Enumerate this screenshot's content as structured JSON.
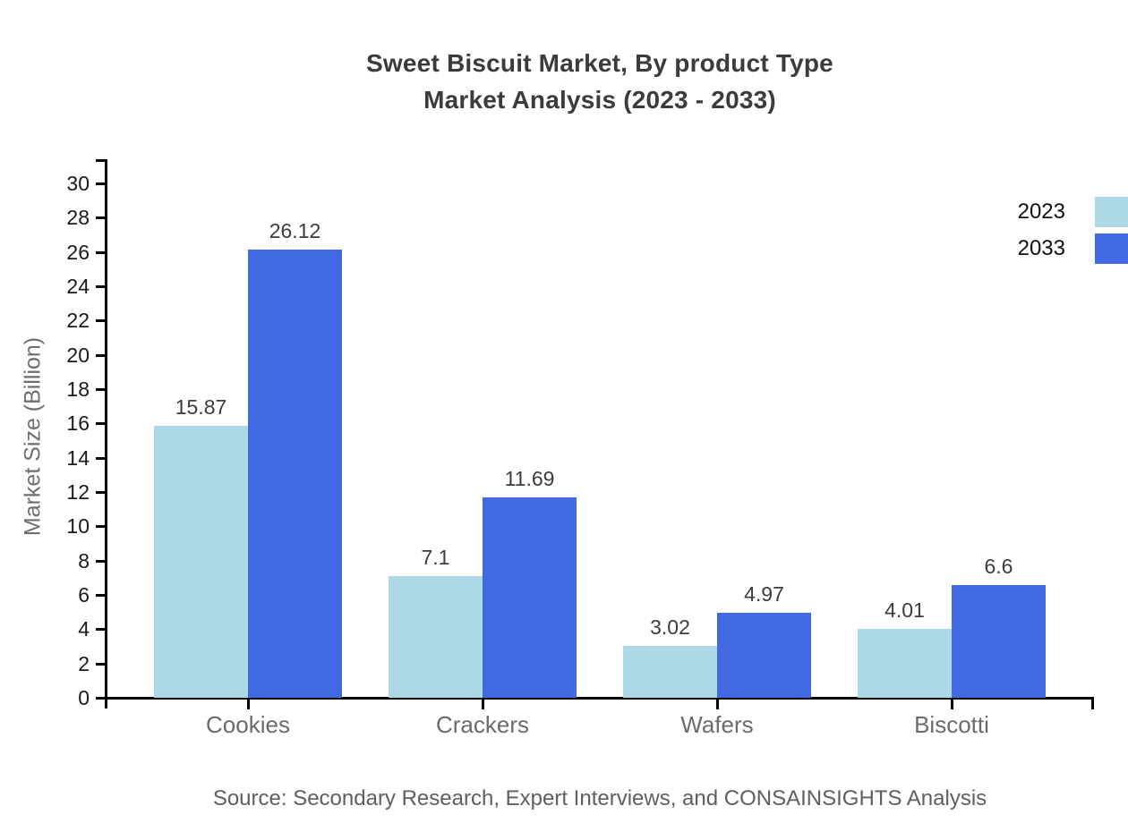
{
  "chart_data": {
    "type": "bar",
    "title": "Sweet Biscuit Market, By product Type",
    "subtitle": "Market Analysis (2023 - 2033)",
    "ylabel": "Market Size (Billion)",
    "xlabel": "",
    "categories": [
      "Cookies",
      "Crackers",
      "Wafers",
      "Biscotti"
    ],
    "series": [
      {
        "name": "2023",
        "color": "#ADD8E6",
        "values": [
          15.87,
          7.1,
          3.02,
          4.01
        ],
        "labels": [
          "15.87",
          "7.1",
          "3.02",
          "4.01"
        ]
      },
      {
        "name": "2033",
        "color": "#4169E1",
        "values": [
          26.12,
          11.69,
          4.97,
          6.6
        ],
        "labels": [
          "26.12",
          "11.69",
          "4.97",
          "6.6"
        ]
      }
    ],
    "ylim": [
      0,
      30
    ],
    "ytick_step": 2,
    "grid": false,
    "legend_position": "top-right",
    "source": "Source: Secondary Research, Expert Interviews, and CONSAINSIGHTS Analysis"
  }
}
